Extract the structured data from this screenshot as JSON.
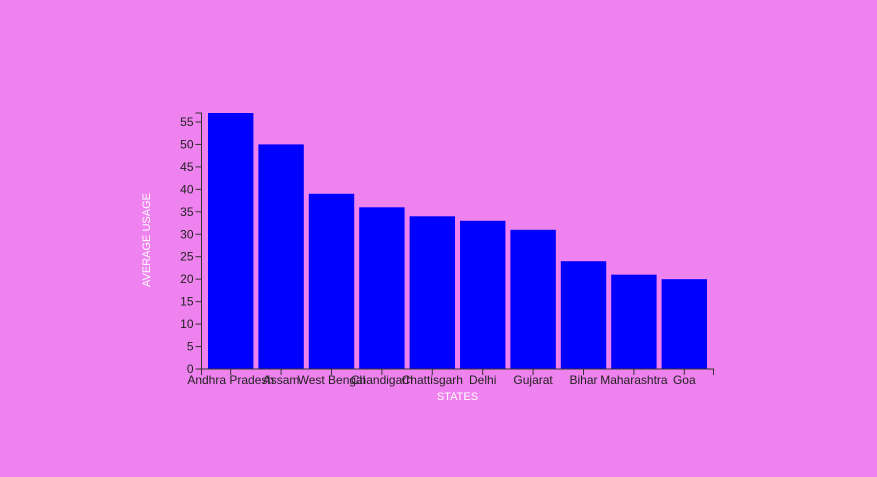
{
  "colors": {
    "background": "#ee82ee",
    "bar": "#0000ff",
    "axis": "#333333",
    "tick_text": "#222222",
    "axis_title": "#ffffff"
  },
  "chart_data": {
    "type": "bar",
    "title": "",
    "xlabel": "STATES",
    "ylabel": "AVERAGE USAGE",
    "categories": [
      "Andhra Pradesh",
      "Assam",
      "West Bengal",
      "Chandigarh",
      "Chattisgarh",
      "Delhi",
      "Gujarat",
      "Bihar",
      "Maharashtra",
      "Goa"
    ],
    "values": [
      57,
      50,
      39,
      36,
      34,
      33,
      31,
      24,
      21,
      20
    ],
    "ylim": [
      0,
      57
    ],
    "yticks": [
      0,
      5,
      10,
      15,
      20,
      25,
      30,
      35,
      40,
      45,
      50,
      55
    ],
    "grid": false,
    "legend": "none"
  }
}
